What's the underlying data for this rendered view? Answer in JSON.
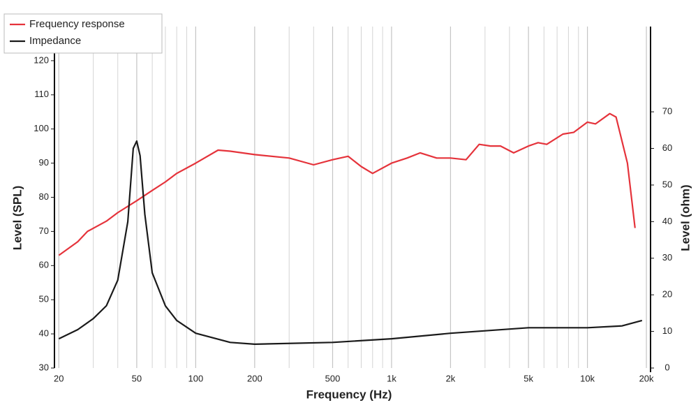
{
  "chart_data": {
    "type": "line",
    "xlabel": "Frequency (Hz)",
    "ylabel": "Level (SPL)",
    "y2label": "Level (ohm)",
    "xscale": "log",
    "xlim": [
      19,
      21000
    ],
    "xticks": [
      20,
      50,
      100,
      200,
      500,
      {
        "value": 1000,
        "label": "1k"
      },
      {
        "value": 2000,
        "label": "2k"
      },
      {
        "value": 5000,
        "label": "5k"
      },
      {
        "value": 10000,
        "label": "10k"
      },
      {
        "value": 20000,
        "label": "20k"
      }
    ],
    "xminorticks": [
      30,
      40,
      60,
      70,
      80,
      90,
      300,
      400,
      600,
      700,
      800,
      900,
      3000,
      4000,
      6000,
      7000,
      8000,
      9000
    ],
    "ylim": [
      30,
      130
    ],
    "yticks": [
      30,
      40,
      50,
      60,
      70,
      80,
      90,
      100,
      110,
      120
    ],
    "y2lim": [
      0,
      93.3
    ],
    "y2ticks": [
      0,
      10,
      20,
      30,
      40,
      50,
      60,
      70
    ],
    "grid": true,
    "legend": "upper left",
    "series": [
      {
        "name": "Frequency response",
        "color": "#e5333b",
        "x": [
          20,
          25,
          28,
          35,
          40,
          50,
          60,
          70,
          80,
          100,
          130,
          150,
          200,
          300,
          400,
          500,
          600,
          700,
          800,
          1000,
          1200,
          1400,
          1700,
          2000,
          2400,
          2800,
          3200,
          3600,
          4200,
          5000,
          5600,
          6200,
          7500,
          8500,
          10000,
          11000,
          13000,
          14000,
          16000,
          17500
        ],
        "values": [
          63,
          67,
          70,
          73,
          75.5,
          79,
          82,
          84.5,
          87,
          90,
          93.8,
          93.5,
          92.5,
          91.5,
          89.5,
          91,
          92,
          89,
          87,
          90,
          91.5,
          93,
          91.5,
          91.5,
          91,
          95.5,
          95,
          95,
          93,
          95,
          96,
          95.5,
          98.5,
          99,
          102,
          101.5,
          104.5,
          103.5,
          90,
          71
        ]
      },
      {
        "name": "Impedance",
        "color": "#1a1a1a",
        "axis": "y2",
        "x": [
          20,
          25,
          30,
          35,
          40,
          45,
          48,
          50,
          52,
          55,
          60,
          70,
          80,
          100,
          150,
          200,
          500,
          1000,
          2000,
          5000,
          10000,
          15000,
          19000
        ],
        "values": [
          8,
          10.5,
          13.5,
          17,
          24,
          40,
          60,
          62,
          58,
          42,
          26,
          17,
          13,
          9.5,
          7,
          6.5,
          7,
          8,
          9.5,
          11,
          11,
          11.5,
          13
        ]
      }
    ]
  }
}
